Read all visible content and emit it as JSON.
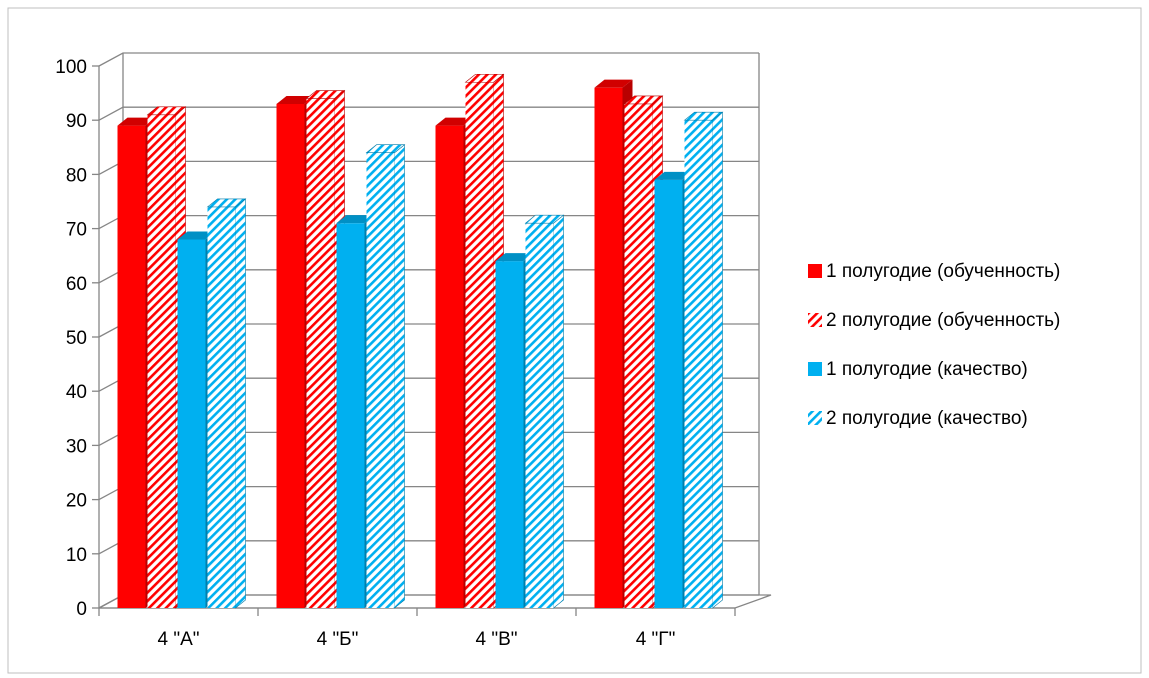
{
  "chart_data": {
    "type": "bar",
    "categories": [
      "4 \"А\"",
      "4 \"Б\"",
      "4 \"В\"",
      "4 \"Г\""
    ],
    "series": [
      {
        "name": "1 полугодие (обученность)",
        "values": [
          89,
          93,
          89,
          96
        ],
        "color": "#ff0000",
        "pattern": "solid"
      },
      {
        "name": "2 полугодие (обученность)",
        "values": [
          91,
          94,
          97,
          93
        ],
        "color": "#ff0000",
        "pattern": "hatched"
      },
      {
        "name": "1 полугодие (качество)",
        "values": [
          68,
          71,
          64,
          79
        ],
        "color": "#00b0f0",
        "pattern": "solid"
      },
      {
        "name": "2 полугодие (качество)",
        "values": [
          74,
          84,
          71,
          90
        ],
        "color": "#00b0f0",
        "pattern": "hatched"
      }
    ],
    "y_ticks": [
      "0",
      "10",
      "20",
      "30",
      "40",
      "50",
      "60",
      "70",
      "80",
      "90",
      "100"
    ],
    "ylim": [
      0,
      100
    ],
    "y_step": 10,
    "grid": true,
    "legend_position": "right",
    "three_d": true
  }
}
